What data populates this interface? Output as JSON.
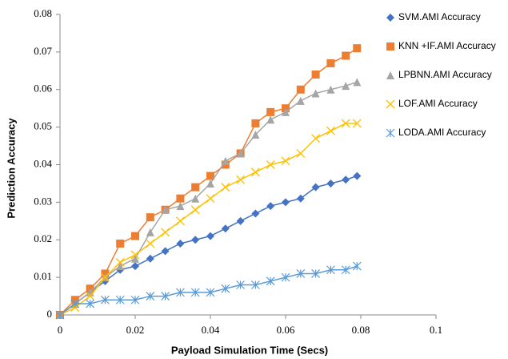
{
  "chart_data": {
    "type": "scatter",
    "x_label": "Payload Simulation Time (Secs)",
    "y_label": "Prediction Accuracy",
    "x": [
      0,
      0.004,
      0.008,
      0.012,
      0.016,
      0.02,
      0.024,
      0.028,
      0.032,
      0.036,
      0.04,
      0.044,
      0.048,
      0.052,
      0.056,
      0.06,
      0.064,
      0.068,
      0.072,
      0.076,
      0.079
    ],
    "series": [
      {
        "name": "SVM.AMI Accuracy",
        "color": "#4472c4",
        "marker": "diamond",
        "values": [
          0,
          0.003,
          0.006,
          0.009,
          0.012,
          0.013,
          0.015,
          0.017,
          0.019,
          0.02,
          0.021,
          0.023,
          0.025,
          0.027,
          0.029,
          0.03,
          0.031,
          0.034,
          0.035,
          0.036,
          0.037
        ]
      },
      {
        "name": "KNN +IF.AMI Accuracy",
        "color": "#ed7d31",
        "marker": "square",
        "values": [
          0,
          0.004,
          0.007,
          0.011,
          0.019,
          0.021,
          0.026,
          0.028,
          0.031,
          0.034,
          0.037,
          0.04,
          0.043,
          0.051,
          0.054,
          0.055,
          0.06,
          0.064,
          0.067,
          0.069,
          0.071
        ]
      },
      {
        "name": "LPBNN.AMI Accuracy",
        "color": "#a5a5a5",
        "marker": "triangle",
        "values": [
          0,
          0.003,
          0.006,
          0.01,
          0.013,
          0.015,
          0.022,
          0.028,
          0.029,
          0.031,
          0.035,
          0.041,
          0.043,
          0.048,
          0.052,
          0.054,
          0.057,
          0.059,
          0.06,
          0.061,
          0.062
        ]
      },
      {
        "name": "LOF.AMI Accuracy",
        "color": "#ffc000",
        "marker": "x",
        "values": [
          0,
          0.002,
          0.005,
          0.01,
          0.014,
          0.016,
          0.019,
          0.022,
          0.025,
          0.028,
          0.031,
          0.034,
          0.036,
          0.038,
          0.04,
          0.041,
          0.043,
          0.047,
          0.049,
          0.051,
          0.051
        ]
      },
      {
        "name": "LODA.AMI Accuracy",
        "color": "#5b9bd5",
        "marker": "star",
        "values": [
          0,
          0.003,
          0.003,
          0.004,
          0.004,
          0.004,
          0.005,
          0.005,
          0.006,
          0.006,
          0.006,
          0.007,
          0.008,
          0.008,
          0.009,
          0.01,
          0.011,
          0.011,
          0.012,
          0.012,
          0.013
        ]
      }
    ],
    "xlim": [
      0,
      0.1
    ],
    "xticks": [
      0,
      0.02,
      0.04,
      0.06,
      0.08,
      0.1
    ],
    "ylim": [
      0,
      0.08
    ],
    "yticks": [
      0,
      0.01,
      0.02,
      0.03,
      0.04,
      0.05,
      0.06,
      0.07,
      0.08
    ],
    "legend": "right"
  }
}
